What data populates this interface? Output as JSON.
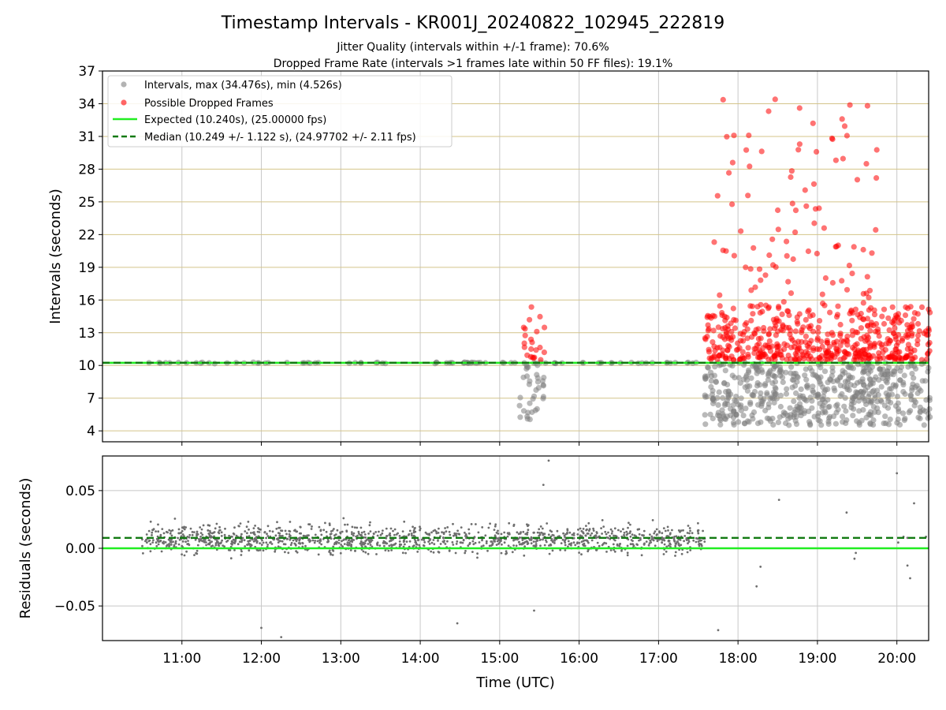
{
  "chart_data": {
    "type": "scatter",
    "title": "Timestamp Intervals - KR001J_20240822_102945_222819",
    "subtitle_lines": [
      "Jitter Quality (intervals within +/-1 frame): 70.6%",
      "Dropped Frame Rate (intervals >1 frames late within 50 FF files): 19.1%"
    ],
    "colors": {
      "intervals": "#808080",
      "dropped": "#ff0000",
      "expected": "#22ee22",
      "median": "#127a12",
      "hgrid": "#d4c48a",
      "vgrid": "#c8c8c8",
      "residuals": "#6e6e6e"
    },
    "panels": [
      {
        "name": "intervals",
        "ylabel": "Intervals (seconds)",
        "ylim": [
          3,
          37
        ],
        "yticks": [
          4,
          7,
          10,
          13,
          16,
          19,
          22,
          25,
          28,
          31,
          34,
          37
        ],
        "legend": {
          "placement": "top-left",
          "entries": [
            "Intervals, max (34.476s), min (4.526s)",
            "Possible Dropped Frames",
            "Expected (10.240s), (25.00000 fps)",
            "Median (10.249 +/- 1.122 s), (24.97702 +/- 2.11 fps)"
          ]
        },
        "expected_line": 10.24,
        "median_line": 10.249,
        "regions": [
          {
            "series": "intervals",
            "x_range": [
              "10:30",
              "17:30"
            ],
            "y_center": 10.24,
            "y_spread": 0.05,
            "approx_points": 90
          },
          {
            "series": "intervals",
            "x_range": [
              "15:15",
              "15:35"
            ],
            "y_range": [
              5.0,
              10.3
            ],
            "approx_points": 35
          },
          {
            "series": "dropped",
            "x_range": [
              "15:18",
              "15:35"
            ],
            "y_range": [
              10.5,
              15.4
            ],
            "approx_points": 22
          },
          {
            "series": "intervals",
            "x_range": [
              "17:35",
              "20:25"
            ],
            "y_range": [
              4.5,
              10.3
            ],
            "approx_points": 560
          },
          {
            "series": "dropped",
            "x_range": [
              "17:35",
              "20:25"
            ],
            "y_range": [
              10.5,
              15.5
            ],
            "approx_points": 500
          },
          {
            "series": "dropped",
            "x_range": [
              "17:40",
              "19:45"
            ],
            "y_range": [
              15.5,
              34.5
            ],
            "approx_points": 95
          }
        ]
      },
      {
        "name": "residuals",
        "ylabel": "Residuals (seconds)",
        "ylim": [
          -0.08,
          0.08
        ],
        "yticks": [
          0.05,
          0.0,
          -0.05
        ],
        "ytick_labels": [
          "0.05",
          "0.00",
          "−0.05"
        ],
        "expected_line": 0.0,
        "median_line": 0.009,
        "regions": [
          {
            "series": "residuals",
            "x_range": [
              "10:30",
              "17:35"
            ],
            "y_center": 0.008,
            "y_spread": 0.012,
            "approx_points": 1400
          }
        ],
        "outliers": [
          {
            "x": "15:37",
            "y": 0.076
          },
          {
            "x": "15:33",
            "y": 0.055
          },
          {
            "x": "14:28",
            "y": -0.065
          },
          {
            "x": "12:00",
            "y": -0.069
          },
          {
            "x": "12:15",
            "y": -0.077
          },
          {
            "x": "15:26",
            "y": -0.054
          },
          {
            "x": "17:45",
            "y": -0.071
          },
          {
            "x": "18:14",
            "y": -0.033
          },
          {
            "x": "18:17",
            "y": -0.016
          },
          {
            "x": "18:31",
            "y": 0.042
          },
          {
            "x": "19:22",
            "y": 0.031
          },
          {
            "x": "19:29",
            "y": -0.004
          },
          {
            "x": "19:28",
            "y": -0.009
          },
          {
            "x": "20:00",
            "y": 0.065
          },
          {
            "x": "20:01",
            "y": 0.005
          },
          {
            "x": "20:05",
            "y": 0.01
          },
          {
            "x": "20:08",
            "y": 0.009
          },
          {
            "x": "20:10",
            "y": -0.026
          },
          {
            "x": "20:08",
            "y": -0.015
          },
          {
            "x": "20:13",
            "y": 0.039
          },
          {
            "x": "20:22",
            "y": 0.01
          }
        ]
      }
    ],
    "x": {
      "xlabel": "Time (UTC)",
      "xlim": [
        "10:00",
        "20:24"
      ],
      "ticks": [
        "11:00",
        "12:00",
        "13:00",
        "14:00",
        "15:00",
        "16:00",
        "17:00",
        "18:00",
        "19:00",
        "20:00"
      ]
    }
  }
}
